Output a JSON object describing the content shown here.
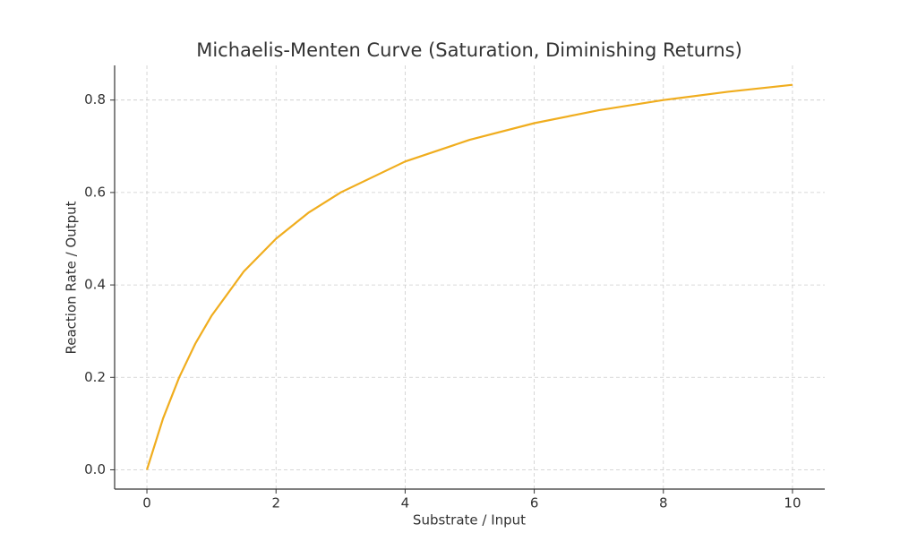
{
  "chart_data": {
    "type": "line",
    "title": "Michaelis-Menten Curve (Saturation, Diminishing Returns)",
    "xlabel": "Substrate / Input",
    "ylabel": "Reaction Rate / Output",
    "x": [
      0,
      0.25,
      0.5,
      0.75,
      1,
      1.5,
      2,
      2.5,
      3,
      4,
      5,
      6,
      7,
      8,
      9,
      10
    ],
    "values": [
      0,
      0.111,
      0.2,
      0.273,
      0.333,
      0.429,
      0.5,
      0.556,
      0.6,
      0.667,
      0.714,
      0.75,
      0.778,
      0.8,
      0.818,
      0.833
    ],
    "color": "#f0ad1e",
    "xlim": [
      -0.5,
      10.5
    ],
    "ylim": [
      -0.0417,
      0.875
    ],
    "xticks": [
      0,
      2,
      4,
      6,
      8,
      10
    ],
    "yticks": [
      {
        "value": 0,
        "label": "0.0"
      },
      0.2,
      0.4,
      0.6,
      0.8
    ],
    "grid": true
  }
}
